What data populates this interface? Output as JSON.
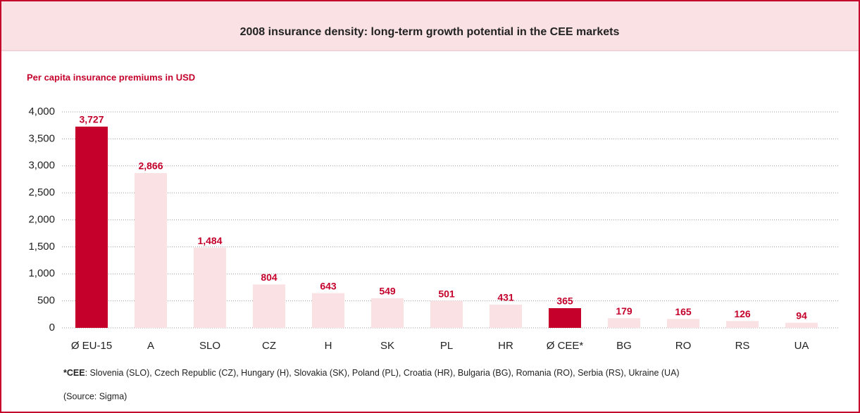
{
  "chart_data": {
    "type": "bar",
    "title": "2008 insurance density: long-term growth potential in the CEE markets",
    "subtitle": "Per capita insurance premiums in USD",
    "categories": [
      "Ø EU-15",
      "A",
      "SLO",
      "CZ",
      "H",
      "SK",
      "PL",
      "HR",
      "Ø CEE*",
      "BG",
      "RO",
      "RS",
      "UA"
    ],
    "values": [
      3727,
      2866,
      1484,
      804,
      643,
      549,
      501,
      431,
      365,
      179,
      165,
      126,
      94
    ],
    "value_labels": [
      "3,727",
      "2,866",
      "1,484",
      "804",
      "643",
      "549",
      "501",
      "431",
      "365",
      "179",
      "165",
      "126",
      "94"
    ],
    "colors": [
      "#c4002b",
      "#f9e1e4",
      "#f9e1e4",
      "#f9e1e4",
      "#f9e1e4",
      "#f9e1e4",
      "#f9e1e4",
      "#f9e1e4",
      "#c4002b",
      "#f9e1e4",
      "#f9e1e4",
      "#f9e1e4",
      "#f9e1e4"
    ],
    "ylim": [
      0,
      4000
    ],
    "yticks": [
      0,
      500,
      {
        "value": 1000,
        "label": "1,000"
      },
      {
        "value": 1500,
        "label": "1,500"
      },
      {
        "value": 2000,
        "label": "2,000"
      },
      {
        "value": 2500,
        "label": "2,500"
      },
      {
        "value": 3000,
        "label": "3,000"
      },
      {
        "value": 3500,
        "label": "3,500"
      },
      {
        "value": 4000,
        "label": "4,000"
      }
    ],
    "grid": true,
    "footnote_label": "*CEE",
    "footnote_text": ": Slovenia (SLO), Czech Republic (CZ), Hungary (H), Slovakia (SK), Poland (PL), Croatia (HR),  Bulgaria (BG), Romania (RO), Serbia (RS), Ukraine (UA)",
    "source": "(Source: Sigma)"
  }
}
